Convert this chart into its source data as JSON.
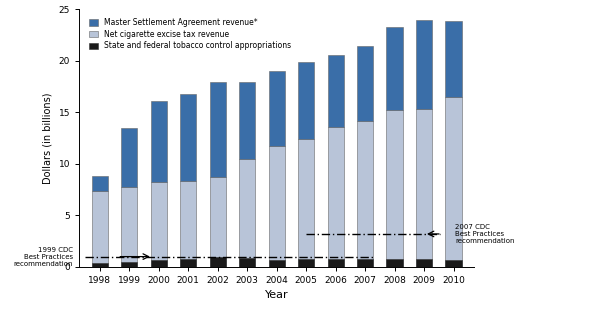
{
  "years": [
    1998,
    1999,
    2000,
    2001,
    2002,
    2003,
    2004,
    2005,
    2006,
    2007,
    2008,
    2009,
    2010
  ],
  "msa_revenue": [
    1.4,
    5.7,
    7.9,
    8.5,
    9.3,
    7.5,
    7.3,
    7.5,
    7.0,
    7.2,
    8.1,
    8.7,
    7.4
  ],
  "excise_tax": [
    7.4,
    7.8,
    8.2,
    8.3,
    8.7,
    10.5,
    11.7,
    12.4,
    13.6,
    14.2,
    15.2,
    15.3,
    16.5
  ],
  "tobacco_control": [
    0.4,
    0.5,
    0.7,
    0.8,
    1.0,
    0.9,
    0.7,
    0.8,
    0.8,
    0.8,
    0.8,
    0.8,
    0.7
  ],
  "cdc_1999_recommendation": 1.0,
  "cdc_2007_recommendation": 3.2,
  "bar_color_msa": "#3a6ea8",
  "bar_color_excise": "#b8c4d8",
  "bar_color_control": "#1a1a1a",
  "ylabel": "Dollars (in billions)",
  "xlabel": "Year",
  "ylim": [
    0,
    25
  ],
  "yticks": [
    0,
    5,
    10,
    15,
    20,
    25
  ],
  "legend_msa": "Master Settlement Agreement revenue*",
  "legend_excise": "Net cigarette excise tax revenue",
  "legend_control": "State and federal tobacco control appropriations",
  "label_1999_cdc": "1999 CDC\nBest Practices\nrecommendation",
  "label_2007_cdc": "2007 CDC\nBest Practices\nrecommendation"
}
